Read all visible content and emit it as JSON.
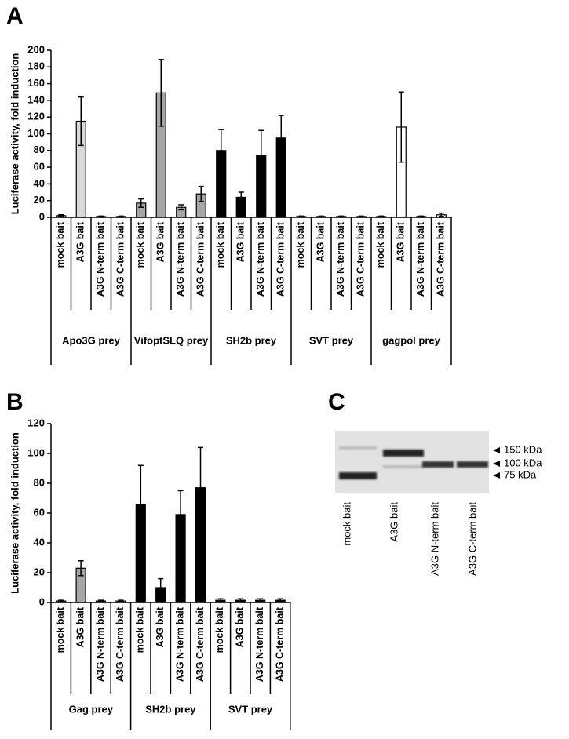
{
  "panel_labels": [
    "A",
    "B",
    "C"
  ],
  "chart_data": [
    {
      "type": "bar",
      "y_label": "Luciferase activity, fold induction",
      "ylim": [
        0,
        200
      ],
      "yticks": [
        0,
        20,
        40,
        60,
        80,
        100,
        120,
        140,
        160,
        180,
        200
      ],
      "series": [
        {
          "name": "Apo3G prey",
          "color": "#d9d9d9",
          "categories": [
            "mock bait",
            "A3G bait",
            "A3G N-term bait",
            "A3G C-term bait"
          ],
          "values": [
            2,
            115,
            1,
            1
          ],
          "errors": [
            1,
            29,
            0.5,
            0.5
          ]
        },
        {
          "name": "VifoptSLQ prey",
          "color": "#a6a6a6",
          "categories": [
            "mock bait",
            "A3G bait",
            "A3G N-term bait",
            "A3G C-term bait"
          ],
          "values": [
            17,
            149,
            12,
            28
          ],
          "errors": [
            5,
            40,
            3,
            9
          ]
        },
        {
          "name": "SH2b prey",
          "color": "#000000",
          "categories": [
            "mock bait",
            "A3G bait",
            "A3G N-term bait",
            "A3G C-term bait"
          ],
          "values": [
            80,
            24,
            74,
            95
          ],
          "errors": [
            25,
            6,
            30,
            27
          ]
        },
        {
          "name": "SVT prey",
          "color": "#000000",
          "categories": [
            "mock bait",
            "A3G bait",
            "A3G N-term bait",
            "A3G C-term bait"
          ],
          "values": [
            1,
            1,
            1,
            1
          ],
          "errors": [
            0.5,
            0.5,
            0.5,
            0.5
          ]
        },
        {
          "name": "gagpol prey",
          "color": "#ffffff",
          "categories": [
            "mock bait",
            "A3G bait",
            "A3G N-term bait",
            "A3G C-term bait"
          ],
          "values": [
            1,
            108,
            1,
            3
          ],
          "errors": [
            0.5,
            42,
            0.5,
            2
          ]
        }
      ]
    },
    {
      "type": "bar",
      "y_label": "Luciferase activity, fold induction",
      "ylim": [
        0,
        120
      ],
      "yticks": [
        0,
        20,
        40,
        60,
        80,
        100,
        120
      ],
      "series": [
        {
          "name": "Gag prey",
          "color": "#a6a6a6",
          "categories": [
            "mock bait",
            "A3G bait",
            "A3G N-term bait",
            "A3G C-term bait"
          ],
          "values": [
            1,
            23,
            1,
            1
          ],
          "errors": [
            0.5,
            5,
            0.5,
            0.5
          ]
        },
        {
          "name": "SH2b prey",
          "color": "#000000",
          "categories": [
            "mock bait",
            "A3G bait",
            "A3G N-term bait",
            "A3G C-term bait"
          ],
          "values": [
            66,
            10,
            59,
            77
          ],
          "errors": [
            26,
            6,
            16,
            27
          ]
        },
        {
          "name": "SVT prey",
          "color": "#000000",
          "categories": [
            "mock bait",
            "A3G bait",
            "A3G N-term bait",
            "A3G C-term bait"
          ],
          "values": [
            1.5,
            1.5,
            1.5,
            1.5
          ],
          "errors": [
            1,
            1,
            1,
            1
          ]
        }
      ]
    }
  ],
  "blot": {
    "lanes": [
      "mock bait",
      "A3G bait",
      "A3G N-term bait",
      "A3G C-term bait"
    ],
    "markers": [
      "150 kDa",
      "100 kDa",
      "75 kDa"
    ]
  }
}
